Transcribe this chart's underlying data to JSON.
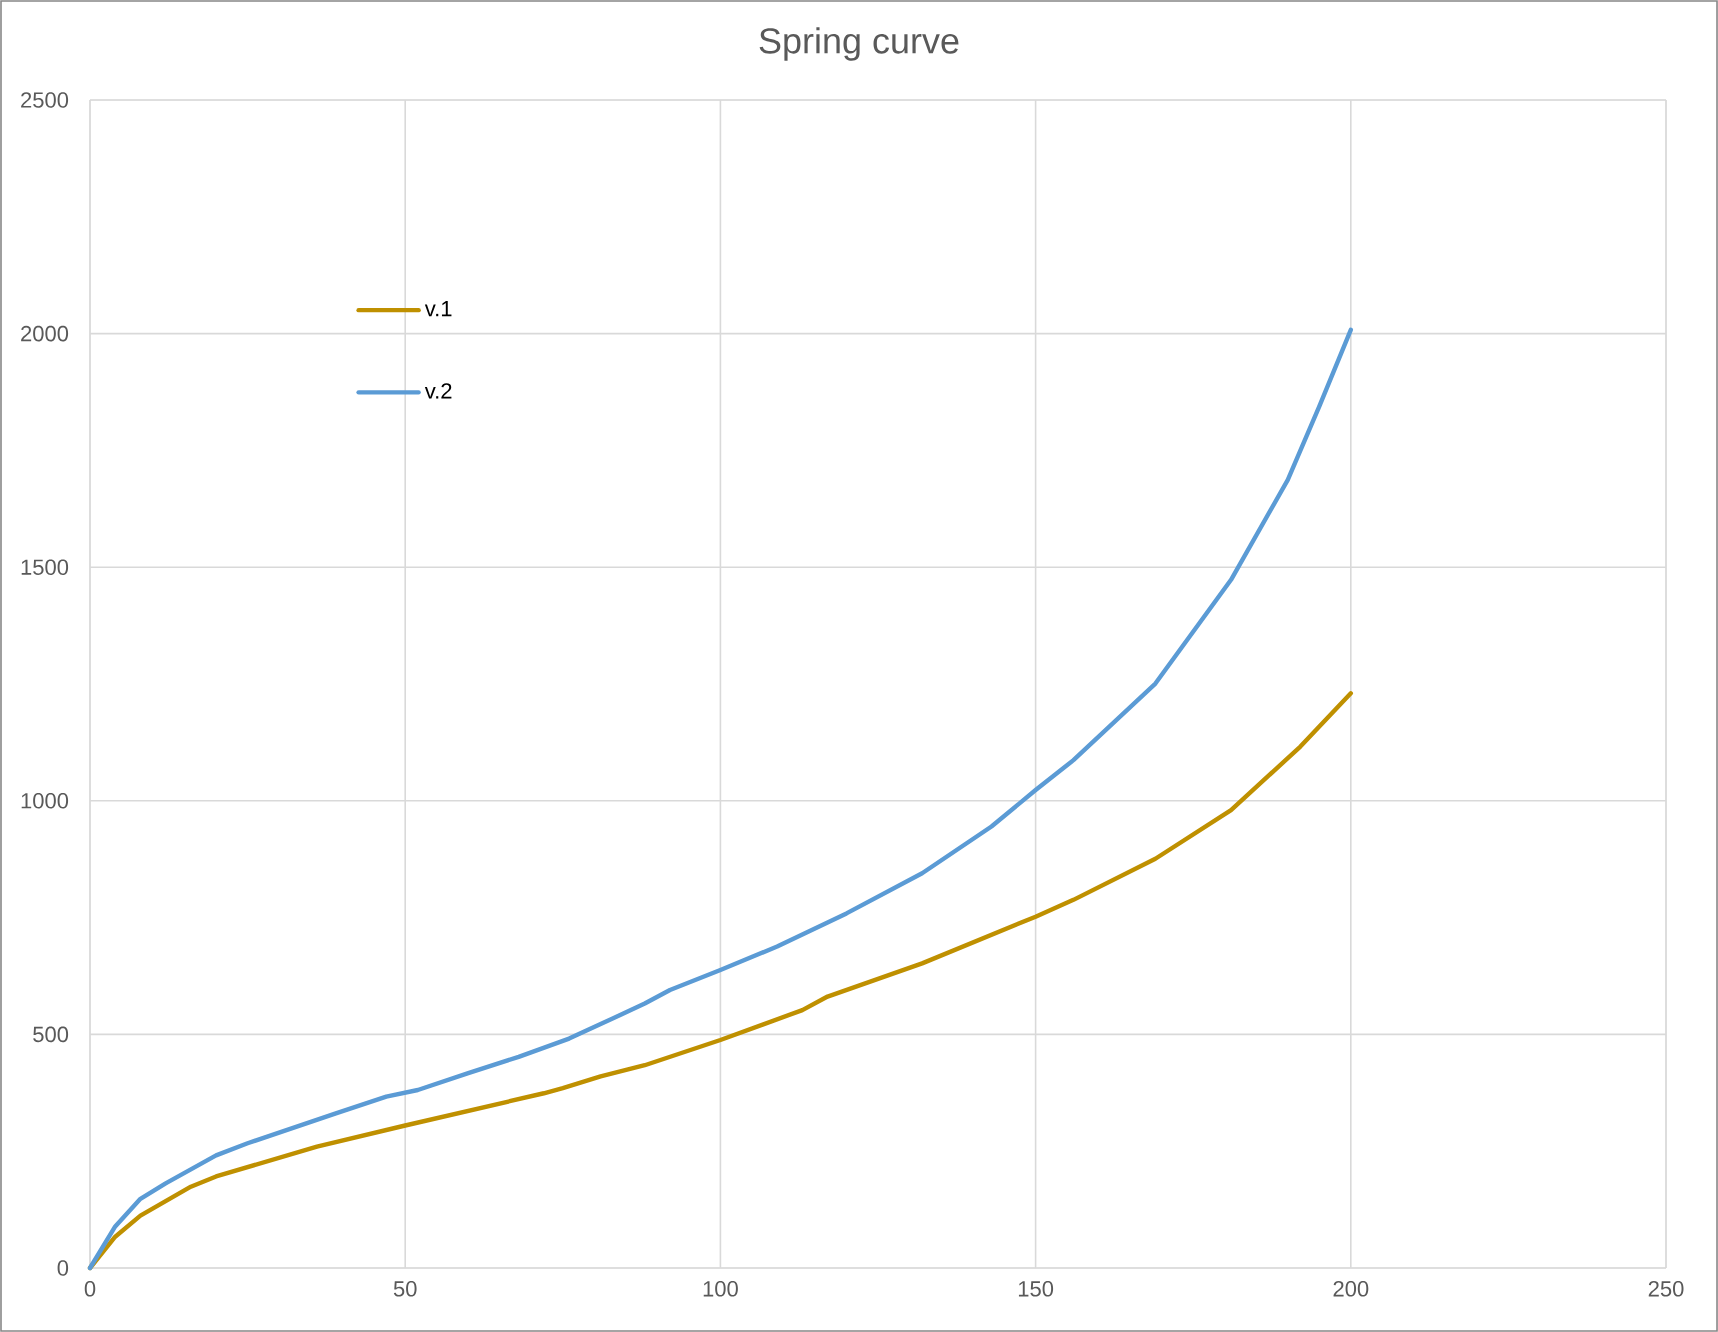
{
  "chart_data": {
    "type": "line",
    "title": "Spring curve",
    "xlim": [
      0,
      250
    ],
    "xticks": [
      0,
      50,
      100,
      150,
      200,
      250
    ],
    "ylim": [
      0,
      2500
    ],
    "yticks": [
      0,
      500,
      1000,
      1500,
      2000,
      2500
    ],
    "grid": true,
    "legend": "top left",
    "marker": "none",
    "line_style": "solid",
    "series": [
      {
        "name": "v.1",
        "color": "#bf9000",
        "x": [
          0,
          4,
          8,
          16,
          20,
          36,
          50,
          72,
          75,
          81,
          88,
          100,
          113,
          117,
          132,
          150,
          156,
          169,
          181,
          192,
          200
        ],
        "values": [
          0,
          67,
          112,
          174,
          196,
          260,
          305,
          374,
          385,
          410,
          434,
          488,
          552,
          581,
          652,
          752,
          788,
          876,
          980,
          1116,
          1230
        ]
      },
      {
        "name": "v.2",
        "color": "#5b9bd5",
        "x": [
          0,
          4,
          8,
          12,
          20,
          25,
          39,
          47,
          52,
          60,
          68,
          76,
          81,
          88,
          92,
          100,
          109,
          120,
          132,
          143,
          150,
          156,
          169,
          181,
          190,
          195,
          200
        ],
        "values": [
          0,
          89,
          148,
          181,
          241,
          267,
          331,
          367,
          381,
          417,
          452,
          491,
          522,
          566,
          595,
          638,
          688,
          759,
          845,
          945,
          1023,
          1087,
          1251,
          1473,
          1687,
          1844,
          2008
        ]
      }
    ]
  }
}
